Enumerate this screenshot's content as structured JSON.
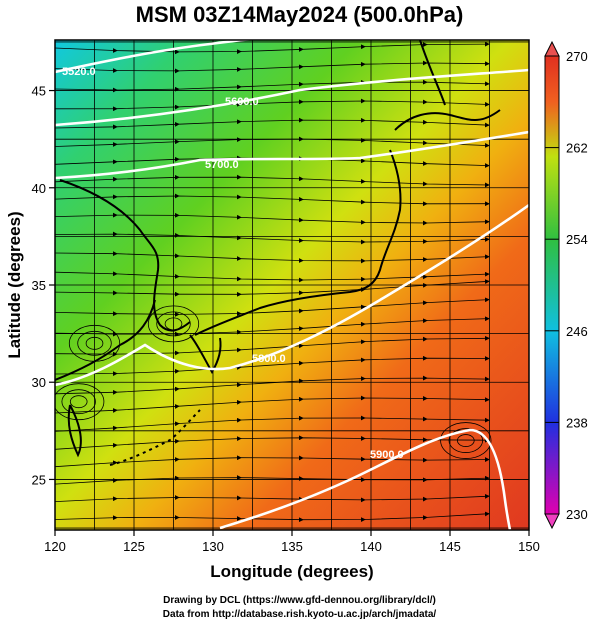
{
  "title": "MSM 03Z14May2024 (500.0hPa)",
  "x_axis": {
    "label": "Longitude (degrees)",
    "ticks": [
      120,
      125,
      130,
      135,
      140,
      145,
      150
    ],
    "range": [
      120,
      150
    ]
  },
  "y_axis": {
    "label": "Latitude  (degrees)",
    "ticks": [
      25,
      30,
      35,
      40,
      45
    ],
    "range": [
      22.4,
      47.6
    ]
  },
  "colorbar": {
    "ticks": [
      230,
      238,
      246,
      254,
      262,
      270
    ],
    "range": [
      230,
      270
    ],
    "colors": [
      "#e000a0",
      "#2030e0",
      "#10c0e0",
      "#30c040",
      "#c0e010",
      "#f06020",
      "#e03020"
    ]
  },
  "contours": [
    {
      "label": "5520.0"
    },
    {
      "label": "5600.0"
    },
    {
      "label": "5700.0"
    },
    {
      "label": "5800.0"
    },
    {
      "label": "5900.0"
    }
  ],
  "credits": [
    "Drawing by DCL (https://www.gfd-dennou.org/library/dcl/)",
    "Data from http://database.rish.kyoto-u.ac.jp/arch/jmadata/"
  ]
}
